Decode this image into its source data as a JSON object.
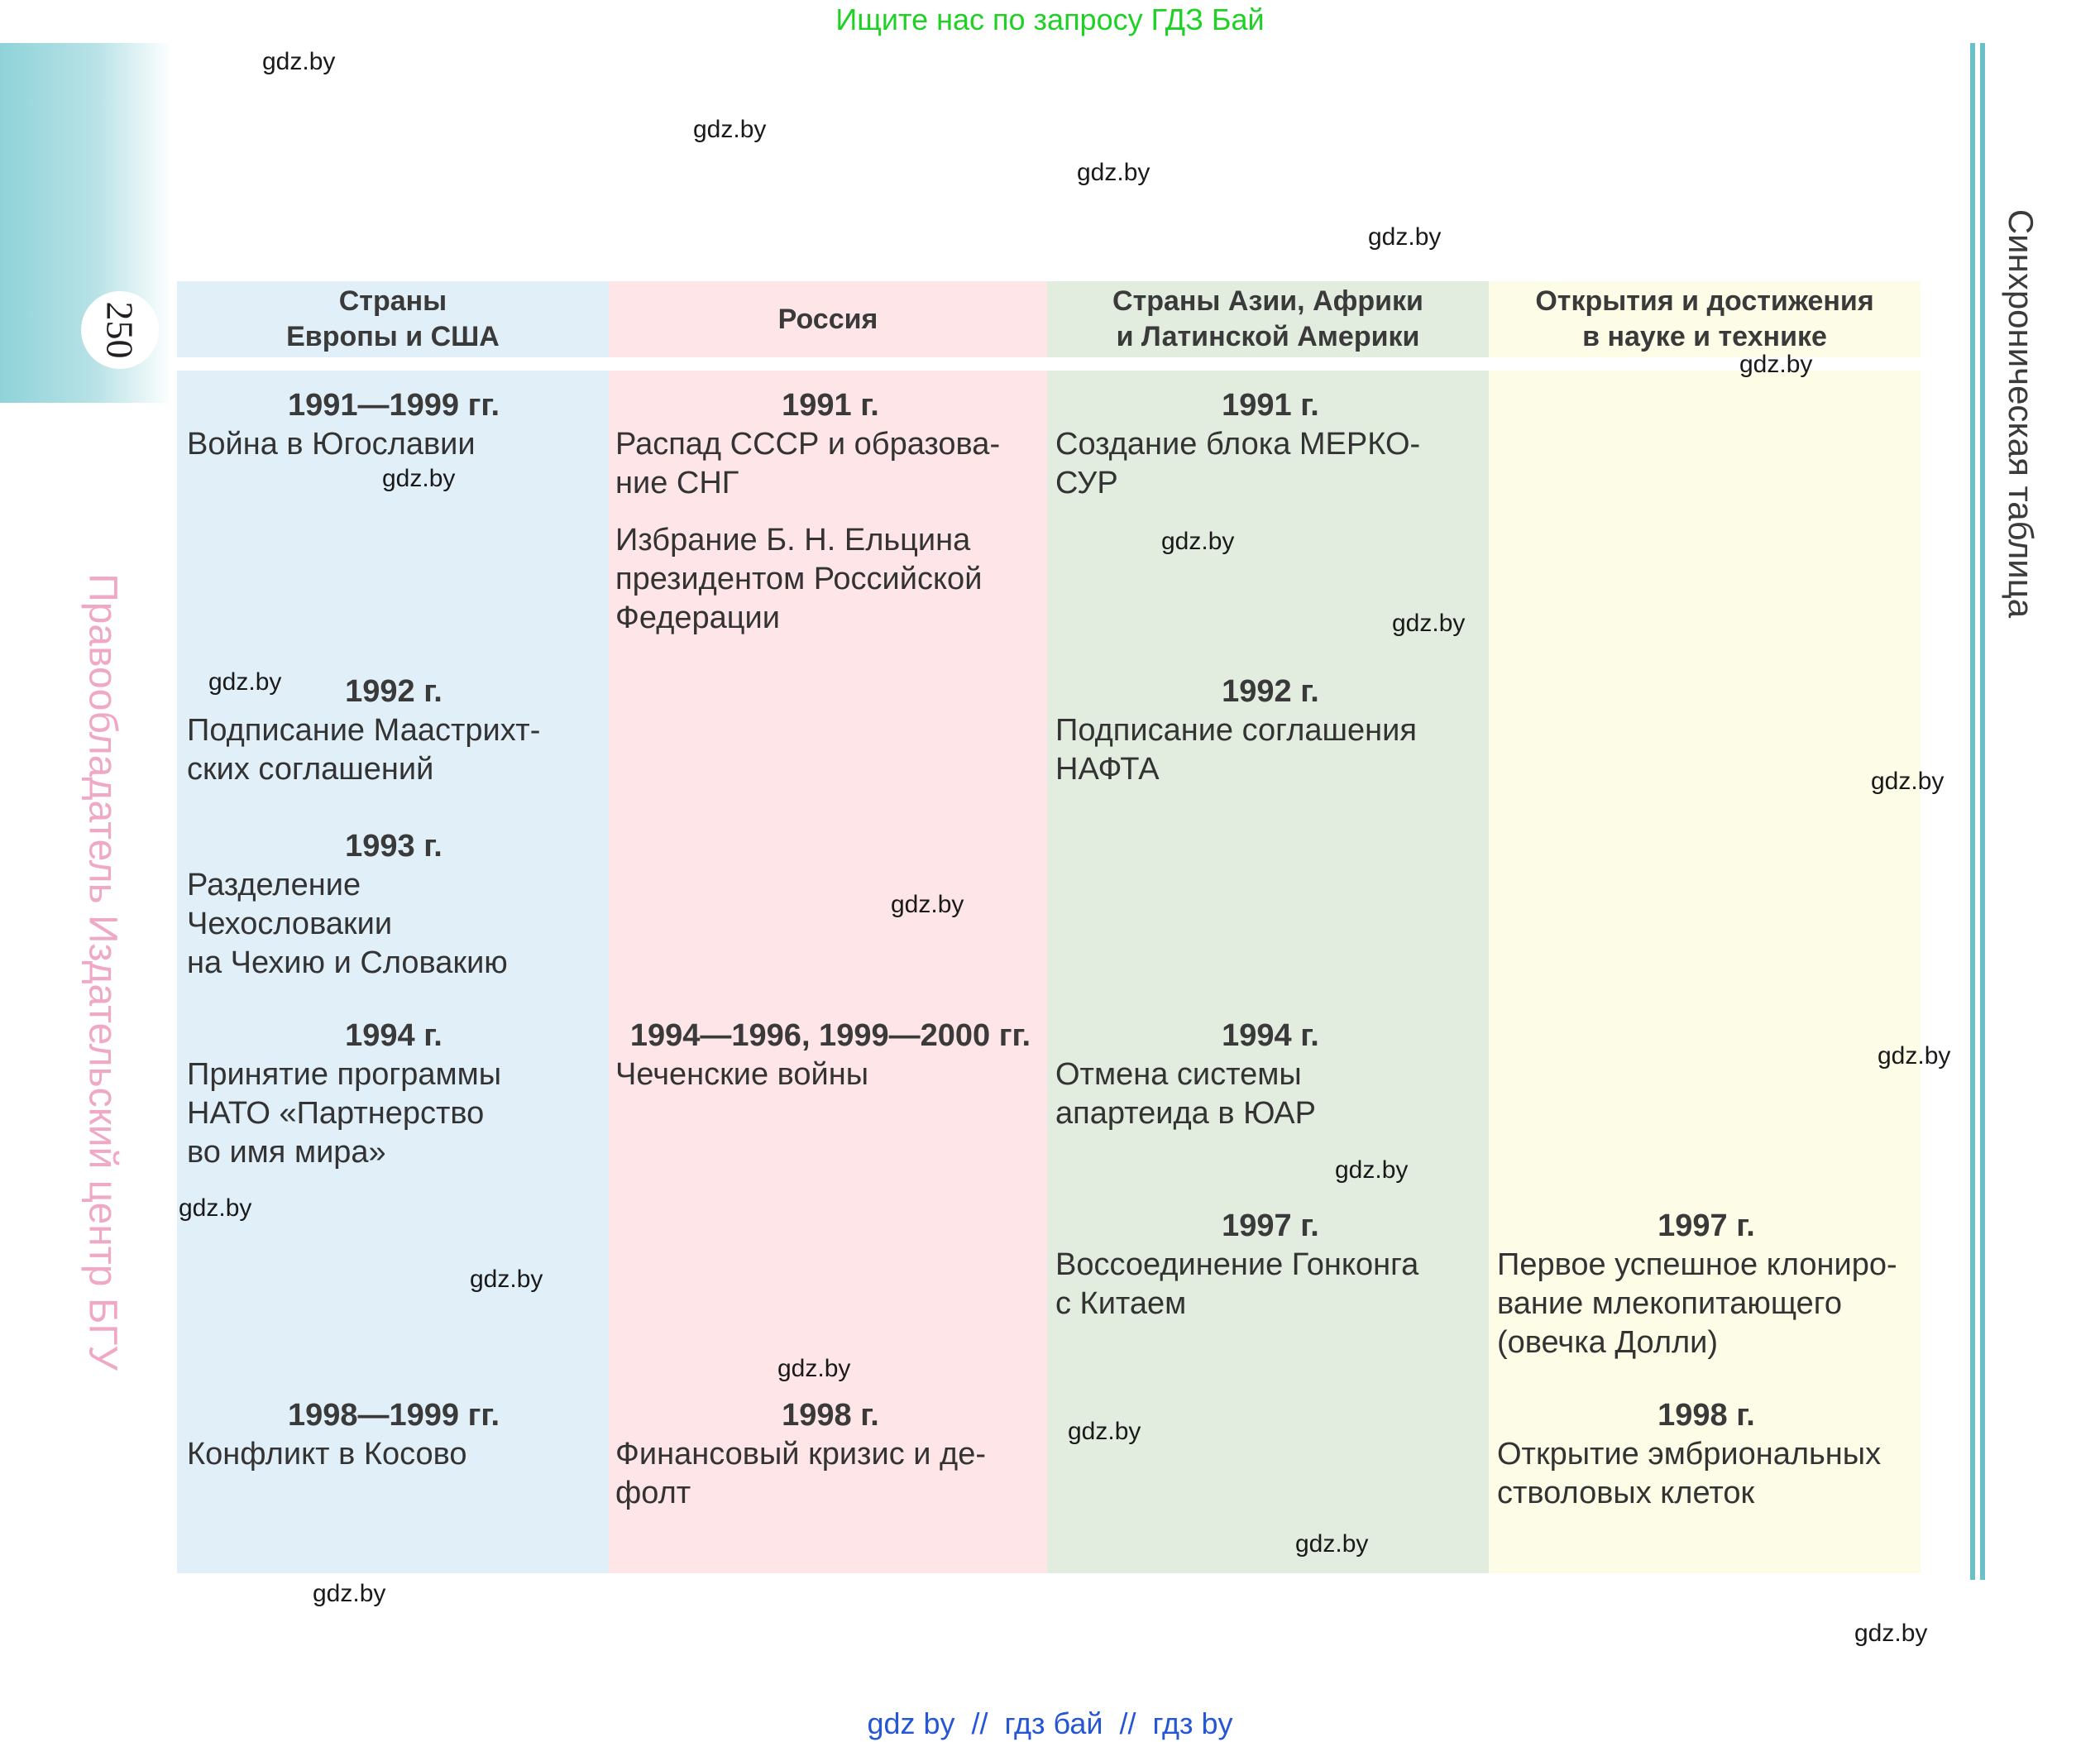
{
  "top_banner": "Ищите нас по запросу ГДЗ Бай",
  "page_number": "250",
  "publisher_note": "Правообладатель Издательский центр БГУ",
  "side_title": "Синхроническая таблица",
  "columns": [
    {
      "header": "Страны\nЕвропы и США",
      "color": "#e1eff8"
    },
    {
      "header": "Россия",
      "color": "#fde5e8"
    },
    {
      "header": "Страны Азии, Африки\nи Латинской Америки",
      "color": "#e2ecdf"
    },
    {
      "header": "Открытия и достижения\nв науке и технике",
      "color": "#fdfde7"
    }
  ],
  "europe_usa": [
    {
      "year": "1991—1999 гг.",
      "text": "Война в Югославии"
    },
    {
      "year": "1992 г.",
      "text": "Подписание Маастрихт-\nских соглашений"
    },
    {
      "year": "1993 г.",
      "text": "Разделение\nЧехословакии\nна Чехию и Словакию"
    },
    {
      "year": "1994 г.",
      "text": "Принятие программы\nНАТО «Партнерство\nво имя мира»"
    },
    {
      "year": "1998—1999 гг.",
      "text": "Конфликт в Косово"
    }
  ],
  "russia": [
    {
      "year": "1991 г.",
      "text": "Распад СССР и образова-\nние СНГ"
    },
    {
      "year": "",
      "text": "Избрание Б. Н. Ельцина\nпрезидентом Российской\nФедерации"
    },
    {
      "year": "1994—1996, 1999—2000 гг.",
      "text": "Чеченские войны"
    },
    {
      "year": "1998 г.",
      "text": "Финансовый кризис и де-\nфолт"
    }
  ],
  "asia_africa_la": [
    {
      "year": "1991 г.",
      "text": "Создание блока МЕРКО-\nСУР"
    },
    {
      "year": "1992 г.",
      "text": "Подписание соглашения\nНАФТА"
    },
    {
      "year": "1994 г.",
      "text": "Отмена системы\nапартеида в ЮАР"
    },
    {
      "year": "1997 г.",
      "text": "Воссоединение Гонконга\nс Китаем"
    }
  ],
  "science_tech": [
    {
      "year": "1997 г.",
      "text": "Первое успешное клониро-\nвание млекопитающего\n(овечка Долли)"
    },
    {
      "year": "1998 г.",
      "text": "Открытие эмбриональных\nстволовых клеток"
    }
  ],
  "watermark": "gdz.by",
  "footer": "gdz by  //  гдз бай  //  гдз by"
}
